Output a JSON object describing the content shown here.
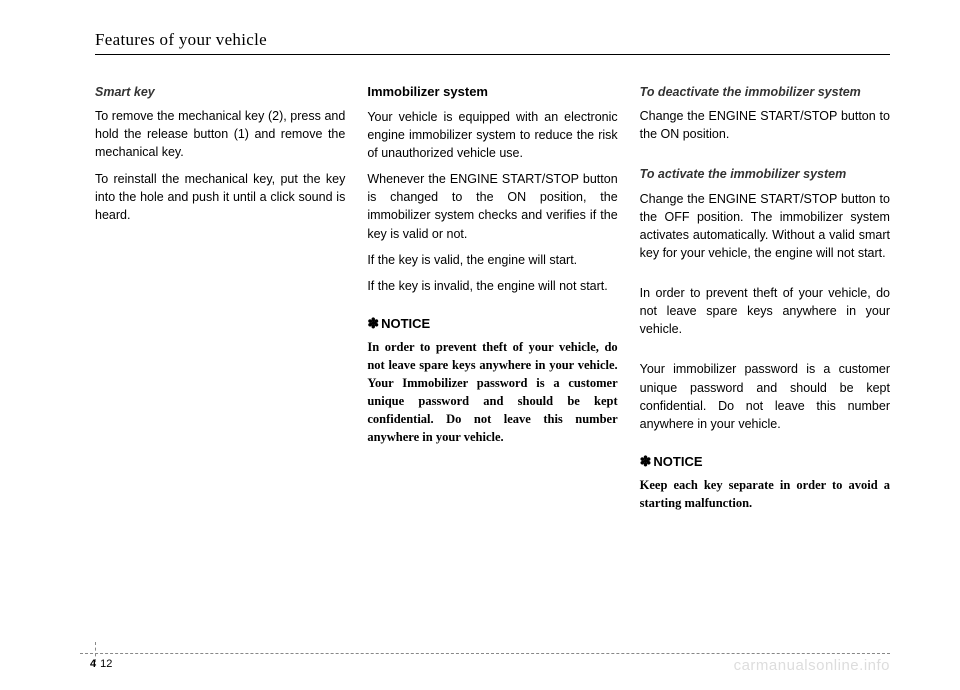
{
  "header": {
    "title": "Features of your vehicle"
  },
  "col1": {
    "heading": "Smart key",
    "p1": "To remove the mechanical key (2), press and hold the release button (1) and remove the mechanical key.",
    "p2": "To reinstall the mechanical key, put the key into the hole and push it until a click sound is heard."
  },
  "col2": {
    "heading": "Immobilizer system",
    "p1": "Your vehicle is equipped with an electronic engine immobilizer system to reduce the risk of unauthorized vehicle use.",
    "p2": "Whenever the ENGINE START/STOP button is changed to the ON position, the immobilizer system checks and verifies if the key is valid or not.",
    "p3": "If the key is valid, the engine will start.",
    "p4": "If the key is invalid, the engine will not start.",
    "notice_label": "NOTICE",
    "notice_body": "In order to prevent theft of your vehicle, do not leave spare keys anywhere in your vehicle. Your Immobilizer password is a customer unique password and should be kept confidential. Do not leave this number anywhere in your vehicle."
  },
  "col3": {
    "heading1": "To deactivate the immobilizer system",
    "p1": "Change the ENGINE START/STOP button to the ON position.",
    "heading2": "To activate the immobilizer system",
    "p2": "Change the ENGINE START/STOP button to the OFF position. The immobilizer system activates automatically. Without a valid smart key for your vehicle, the engine will not start.",
    "p3": "In order to prevent theft of your vehicle, do not leave spare keys anywhere in your vehicle.",
    "p4": "Your immobilizer password is a customer unique password and should be kept confidential. Do not leave this number anywhere in your vehicle.",
    "notice_label": "NOTICE",
    "notice_body": "Keep each key separate in order to avoid a starting malfunction."
  },
  "footer": {
    "chapter": "4",
    "page": "12"
  },
  "watermark": "carmanualsonline.info",
  "style": {
    "text_color": "#000000",
    "watermark_color": "#dddddd",
    "dash_color": "#888888",
    "background_color": "#ffffff"
  }
}
